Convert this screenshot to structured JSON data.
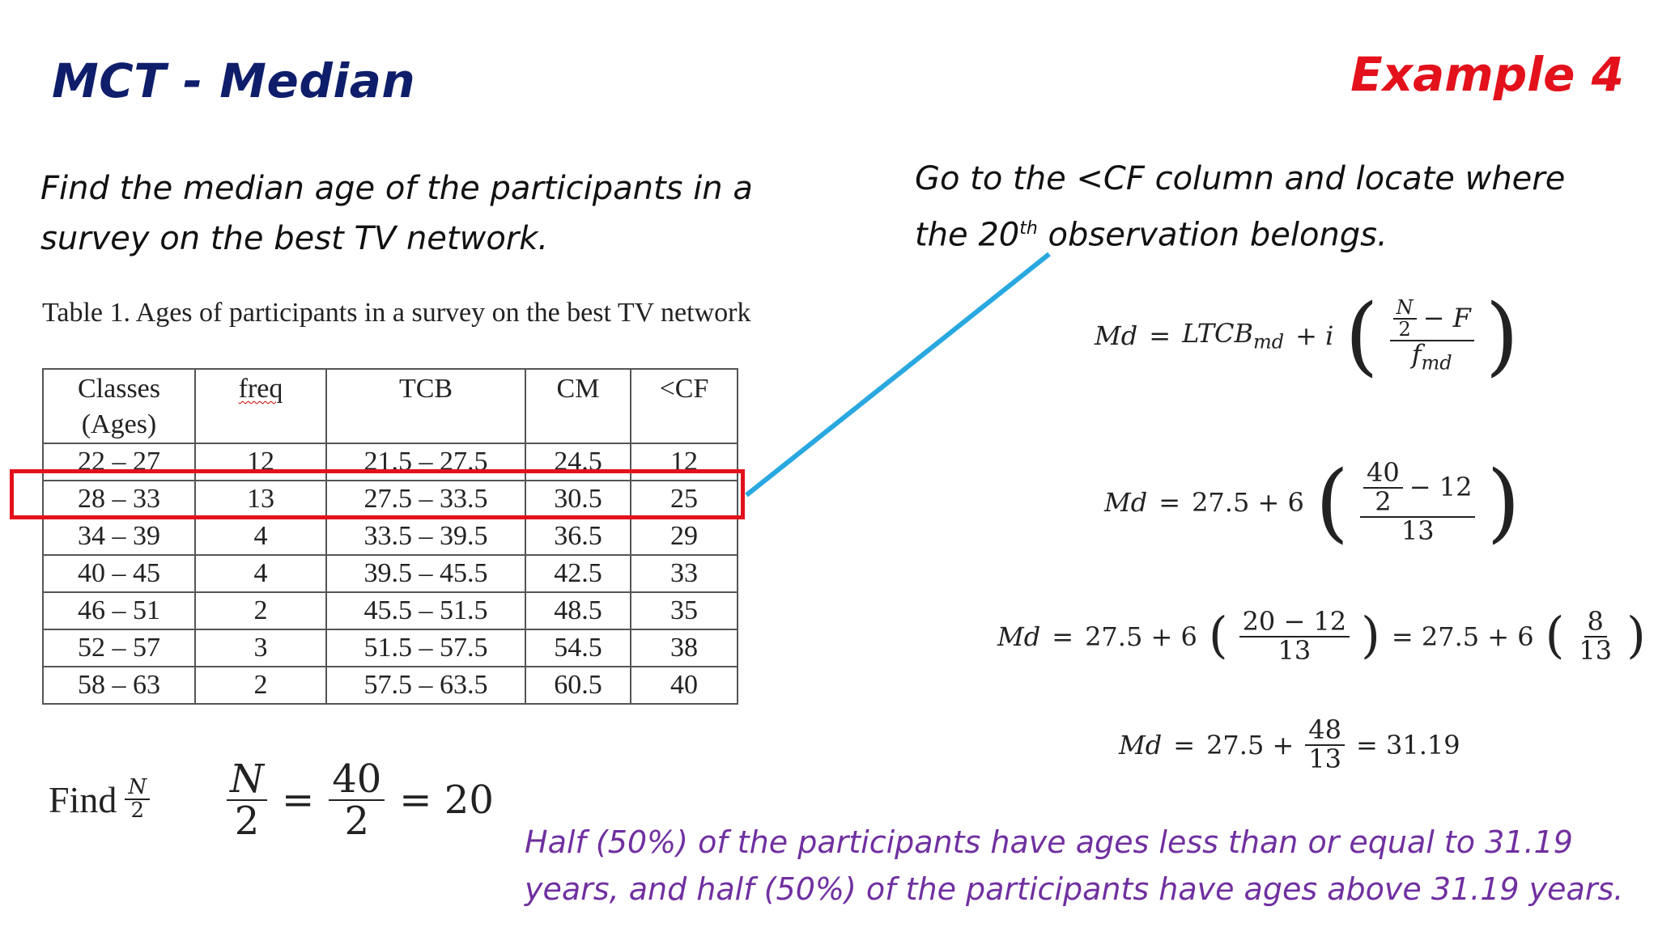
{
  "header": {
    "title": "MCT - Median",
    "example": "Example 4"
  },
  "task": "Find the median age of the participants in a survey on the best TV network.",
  "hint": {
    "before": "Go to the <CF column and locate where the 20",
    "sup": "th",
    "after": " observation belongs."
  },
  "table": {
    "caption": "Table 1. Ages of participants in a survey on the best TV network",
    "headers": {
      "classes_line1": "Classes",
      "classes_line2": "(Ages)",
      "freq": "freq",
      "tcb": "TCB",
      "cm": "CM",
      "cf": "<CF"
    },
    "rows": [
      [
        "22 – 27",
        "12",
        "21.5 – 27.5",
        "24.5",
        "12"
      ],
      [
        "28 – 33",
        "13",
        "27.5 – 33.5",
        "30.5",
        "25"
      ],
      [
        "34 – 39",
        "4",
        "33.5 – 39.5",
        "36.5",
        "29"
      ],
      [
        "40 – 45",
        "4",
        "39.5 – 45.5",
        "42.5",
        "33"
      ],
      [
        "46 – 51",
        "2",
        "45.5 – 51.5",
        "48.5",
        "35"
      ],
      [
        "52 – 57",
        "3",
        "51.5 – 57.5",
        "54.5",
        "38"
      ],
      [
        "58 – 63",
        "2",
        "57.5 – 63.5",
        "60.5",
        "40"
      ]
    ],
    "highlight_row": "28 – 33"
  },
  "formulas": {
    "md": "Md",
    "eq": "=",
    "general": {
      "ltcb": "LTCB",
      "ltcb_sub": "md",
      "plus_i": "+ i",
      "n": "N",
      "two": "2",
      "minus_f": "− F",
      "f": "f",
      "f_sub": "md"
    },
    "step1": {
      "base": "27.5 + 6",
      "n": "40",
      "two": "2",
      "minus": "− 12",
      "den": "13"
    },
    "step2": {
      "base": "27.5 + 6",
      "num": "20 − 12",
      "den": "13",
      "mid": "= 27.5 + 6",
      "num2": "8",
      "den2": "13"
    },
    "step3": {
      "base": "27.5 +",
      "num": "48",
      "den": "13",
      "result": "= 31.19"
    }
  },
  "find": {
    "label": "Find",
    "n": "N",
    "two": "2",
    "num1": "N",
    "den1": "2",
    "num2": "40",
    "den2": "2",
    "result": "= 20",
    "eq": "="
  },
  "conclusion": "Half (50%) of the participants have ages less than or equal to 31.19 years, and half (50%) of the participants have ages above 31.19 years.",
  "colors": {
    "title": "#0f1e6b",
    "example": "#e3111b",
    "highlight": "#e3111b",
    "connector": "#29a8e0",
    "conclusion": "#7030a0"
  }
}
